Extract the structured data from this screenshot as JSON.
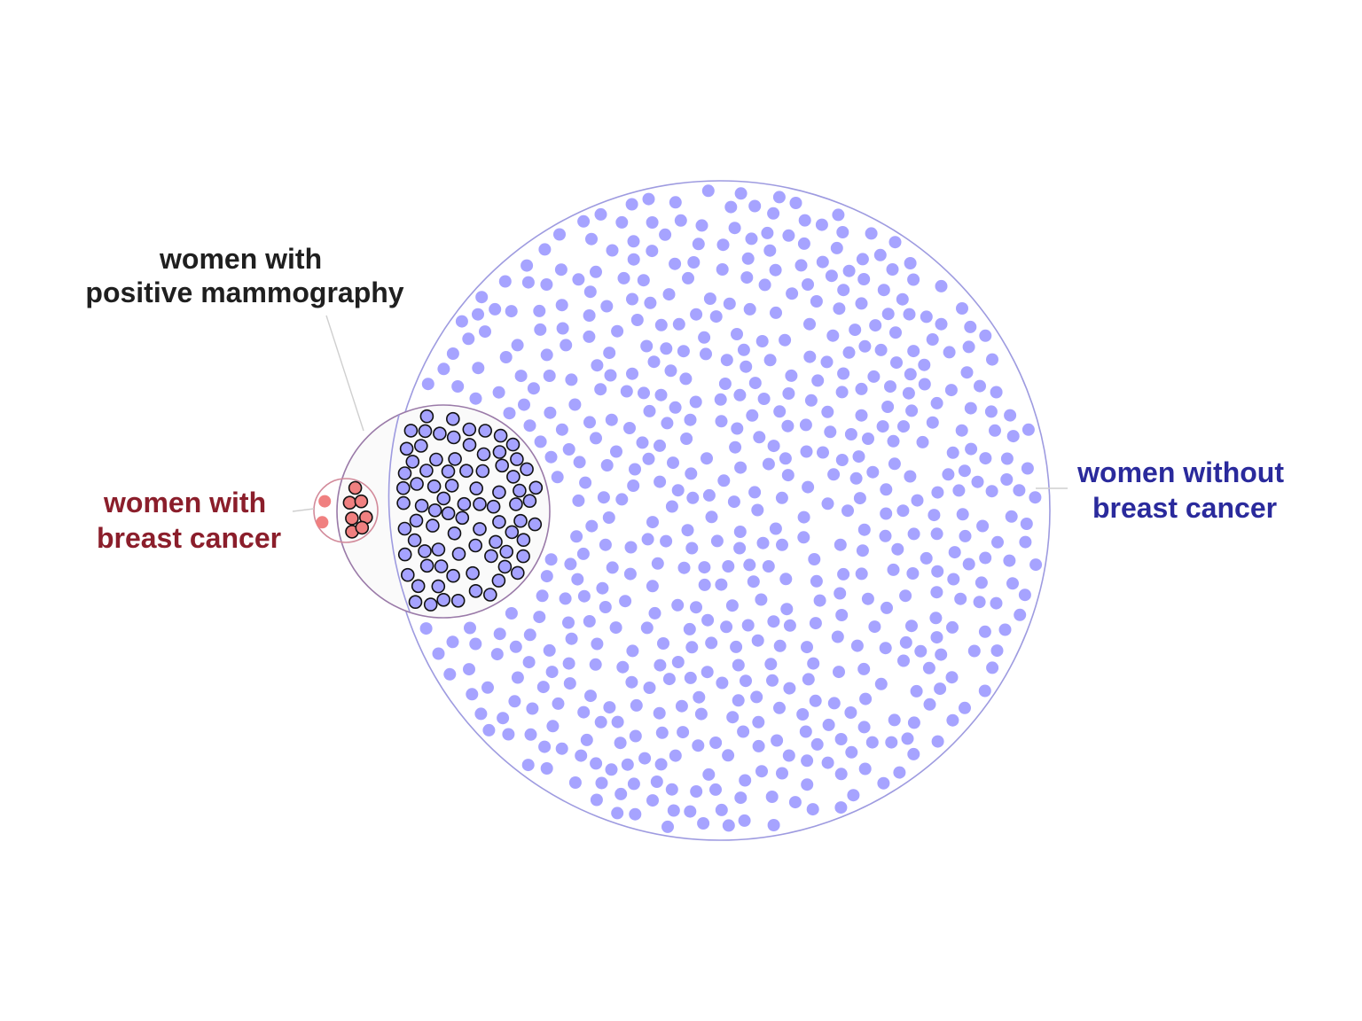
{
  "labels": {
    "positive": {
      "line1": "women with",
      "line2": "positive mammography"
    },
    "cancer": {
      "line1": "women with",
      "line2": "breast cancer"
    },
    "no_cancer": {
      "line1": "women without",
      "line2": "breast cancer"
    }
  },
  "colors": {
    "positive_text": "#1f1f1f",
    "cancer_text": "#8b1e2b",
    "no_cancer_text": "#2a2a9c",
    "no_cancer_dot": "#a6a3ff",
    "no_cancer_ring": "#9e9be0",
    "cancer_dot": "#f08080",
    "cancer_ring": "#d28a9a",
    "positive_ring": "#9a7aa8",
    "positive_fill": "#fafafa",
    "dot_outline": "#111111",
    "leader": "#cfcfcf"
  },
  "counts": {
    "women_with_breast_cancer": 10,
    "true_positives": 8,
    "false_negatives": 2,
    "false_positives": 95,
    "negative_without_cancer": 895
  },
  "icons": {
    "person": "filled-circle"
  }
}
